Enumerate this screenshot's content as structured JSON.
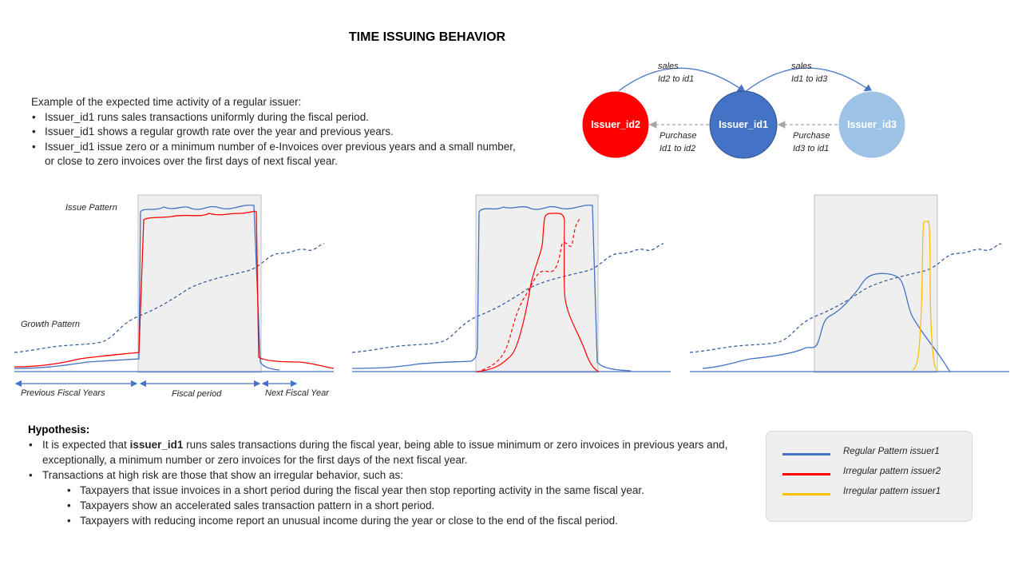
{
  "title": "TIME ISSUING BEHAVIOR",
  "intro": {
    "heading": "Example of the expected time activity of a regular issuer:",
    "bullets": [
      "Issuer_id1 runs sales transactions uniformly during the fiscal period.",
      "Issuer_id1 shows a regular growth rate over the year and previous years.",
      "Issuer_id1 issue zero or a minimum number of e-Invoices over previous years and a small number, or close to zero invoices over the first days of next fiscal year."
    ]
  },
  "network": {
    "nodes": [
      {
        "id": "Issuer_id2",
        "color": "#ff0000"
      },
      {
        "id": "Issuer_id1",
        "color": "#4472c4"
      },
      {
        "id": "Issuer_id3",
        "color": "#9dc3e6"
      }
    ],
    "sales_1": {
      "line1": "sales",
      "line2": "Id2 to id1"
    },
    "sales_2": {
      "line1": "sales",
      "line2": "Id1 to id3"
    },
    "purchase_1": {
      "line1": "Purchase",
      "line2": "Id1 to id2"
    },
    "purchase_2": {
      "line1": "Purchase",
      "line2": "Id3 to id1"
    }
  },
  "chart1": {
    "issue_pattern_label": "Issue Pattern",
    "growth_pattern_label": "Growth Pattern",
    "period_labels": {
      "previous": "Previous Fiscal Years",
      "fiscal": "Fiscal period",
      "next": "Next Fiscal Year"
    }
  },
  "hypothesis": {
    "heading": "Hypothesis:",
    "bullet1_pre": "It is expected that ",
    "bullet1_bold": "issuer_id1",
    "bullet1_post": " runs sales transactions during the fiscal year, being able to issue minimum or zero invoices in previous years and, exceptionally, a minimum number or zero invoices for the first days of the next fiscal year.",
    "bullet2": "Transactions at high risk are those that show an irregular behavior, such as:",
    "sub_bullets": [
      "Taxpayers that issue invoices in a short period during the fiscal year then stop reporting activity in the same fiscal year.",
      "Taxpayers show an accelerated sales transaction pattern in a short period.",
      "Taxpayers with reducing income report an unusual income during the year or close to the end of the fiscal period."
    ]
  },
  "legend": [
    {
      "label": "Regular Pattern issuer1",
      "color": "#4472c4"
    },
    {
      "label": "Irregular pattern issuer2",
      "color": "#ff0000"
    },
    {
      "label": "Irregular pattern issuer1",
      "color": "#ffc000"
    }
  ]
}
